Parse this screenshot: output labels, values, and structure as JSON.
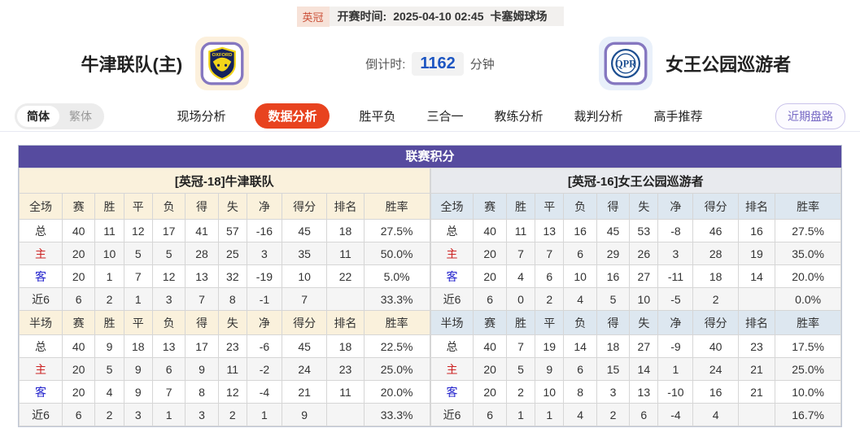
{
  "header": {
    "league": "英冠",
    "kickoff_label": "开赛时间:",
    "kickoff_time": "2025-04-10 02:45",
    "venue": "卡塞姆球场",
    "home_team": "牛津联队(主)",
    "away_team": "女王公园巡游者",
    "home_logo": "oxford-united-crest",
    "away_logo": "qpr-crest",
    "home_logo_word": "OXFORD",
    "away_logo_word": "QPR",
    "countdown_label": "倒计时:",
    "countdown_value": "1162",
    "countdown_unit": "分钟"
  },
  "nav": {
    "lang_options": [
      "简体",
      "繁体"
    ],
    "active_lang": "简体",
    "tabs": [
      "现场分析",
      "数据分析",
      "胜平负",
      "三合一",
      "教练分析",
      "裁判分析",
      "高手推荐"
    ],
    "active_tab": "数据分析",
    "right_button": "近期盘路"
  },
  "table": {
    "title": "联赛积分",
    "home": {
      "team_title": "[英冠-18]牛津联队",
      "full_header": [
        "全场",
        "赛",
        "胜",
        "平",
        "负",
        "得",
        "失",
        "净",
        "得分",
        "排名",
        "胜率"
      ],
      "full_rows": [
        [
          "总",
          "40",
          "11",
          "12",
          "17",
          "41",
          "57",
          "-16",
          "45",
          "18",
          "27.5%"
        ],
        [
          "主",
          "20",
          "10",
          "5",
          "5",
          "28",
          "25",
          "3",
          "35",
          "11",
          "50.0%"
        ],
        [
          "客",
          "20",
          "1",
          "7",
          "12",
          "13",
          "32",
          "-19",
          "10",
          "22",
          "5.0%"
        ],
        [
          "近6",
          "6",
          "2",
          "1",
          "3",
          "7",
          "8",
          "-1",
          "7",
          "",
          "33.3%"
        ]
      ],
      "half_header": [
        "半场",
        "赛",
        "胜",
        "平",
        "负",
        "得",
        "失",
        "净",
        "得分",
        "排名",
        "胜率"
      ],
      "half_rows": [
        [
          "总",
          "40",
          "9",
          "18",
          "13",
          "17",
          "23",
          "-6",
          "45",
          "18",
          "22.5%"
        ],
        [
          "主",
          "20",
          "5",
          "9",
          "6",
          "9",
          "11",
          "-2",
          "24",
          "23",
          "25.0%"
        ],
        [
          "客",
          "20",
          "4",
          "9",
          "7",
          "8",
          "12",
          "-4",
          "21",
          "11",
          "20.0%"
        ],
        [
          "近6",
          "6",
          "2",
          "3",
          "1",
          "3",
          "2",
          "1",
          "9",
          "",
          "33.3%"
        ]
      ]
    },
    "away": {
      "team_title": "[英冠-16]女王公园巡游者",
      "full_header": [
        "全场",
        "赛",
        "胜",
        "平",
        "负",
        "得",
        "失",
        "净",
        "得分",
        "排名",
        "胜率"
      ],
      "full_rows": [
        [
          "总",
          "40",
          "11",
          "13",
          "16",
          "45",
          "53",
          "-8",
          "46",
          "16",
          "27.5%"
        ],
        [
          "主",
          "20",
          "7",
          "7",
          "6",
          "29",
          "26",
          "3",
          "28",
          "19",
          "35.0%"
        ],
        [
          "客",
          "20",
          "4",
          "6",
          "10",
          "16",
          "27",
          "-11",
          "18",
          "14",
          "20.0%"
        ],
        [
          "近6",
          "6",
          "0",
          "2",
          "4",
          "5",
          "10",
          "-5",
          "2",
          "",
          "0.0%"
        ]
      ],
      "half_header": [
        "半场",
        "赛",
        "胜",
        "平",
        "负",
        "得",
        "失",
        "净",
        "得分",
        "排名",
        "胜率"
      ],
      "half_rows": [
        [
          "总",
          "40",
          "7",
          "19",
          "14",
          "18",
          "27",
          "-9",
          "40",
          "23",
          "17.5%"
        ],
        [
          "主",
          "20",
          "5",
          "9",
          "6",
          "15",
          "14",
          "1",
          "24",
          "21",
          "25.0%"
        ],
        [
          "客",
          "20",
          "2",
          "10",
          "8",
          "3",
          "13",
          "-10",
          "16",
          "21",
          "10.0%"
        ],
        [
          "近6",
          "6",
          "1",
          "1",
          "4",
          "2",
          "6",
          "-4",
          "4",
          "",
          "16.7%"
        ]
      ]
    }
  },
  "colors": {
    "accent_tab": "#e8431f",
    "table_header_purple": "#564b9f",
    "home_theme": "#faf1dc",
    "away_theme": "#dde7f0",
    "home_label_red": "#cc2222",
    "away_label_blue": "#2222cc",
    "countdown_blue": "#1d56c2"
  }
}
